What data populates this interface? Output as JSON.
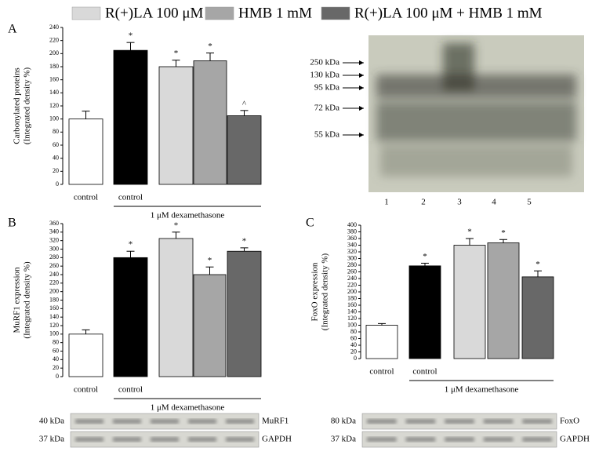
{
  "legend": [
    {
      "name": "R(+)LA 100 μM",
      "color": "#d9d9d9"
    },
    {
      "name": "HMB 1 mM",
      "color": "#a6a6a6"
    },
    {
      "name": "R(+)LA 100 μM + HMB 1 mM",
      "color": "#686868"
    }
  ],
  "chart_data": [
    {
      "type": "bar",
      "panel": "A",
      "ylabel": [
        "Carbonylated proteins",
        "(Integrated density %)"
      ],
      "categories": [
        "control",
        "control",
        null,
        null,
        null
      ],
      "group_label": "1 μM dexamethasone",
      "values": [
        100,
        205,
        180,
        189,
        105
      ],
      "errors": [
        12,
        12,
        10,
        12,
        8
      ],
      "annotations": [
        null,
        "*",
        "*",
        "*",
        "^"
      ],
      "colors": [
        "#ffffff",
        "#000000",
        "#d9d9d9",
        "#a6a6a6",
        "#686868"
      ],
      "ylim": [
        0,
        240
      ],
      "yticks": [
        0,
        20,
        40,
        60,
        80,
        100,
        120,
        140,
        160,
        180,
        200,
        220,
        240
      ],
      "blot": {
        "markers": [
          "250 kDa",
          "130 kDa",
          "95 kDa",
          "72 kDa",
          "55 kDa"
        ],
        "lanes": [
          "1",
          "2",
          "3",
          "4",
          "5"
        ]
      }
    },
    {
      "type": "bar",
      "panel": "B",
      "ylabel": [
        "MuRF1 expression",
        "(Integrated density %)"
      ],
      "categories": [
        "control",
        "control",
        null,
        null,
        null
      ],
      "group_label": "1 μM dexamethasone",
      "values": [
        100,
        280,
        325,
        240,
        295
      ],
      "errors": [
        10,
        15,
        15,
        18,
        8
      ],
      "annotations": [
        null,
        "*",
        "*",
        "*",
        "*"
      ],
      "colors": [
        "#ffffff",
        "#000000",
        "#d9d9d9",
        "#a6a6a6",
        "#686868"
      ],
      "ylim": [
        0,
        360
      ],
      "yticks": [
        0,
        20,
        40,
        60,
        80,
        100,
        120,
        140,
        160,
        180,
        200,
        220,
        240,
        260,
        280,
        300,
        320,
        340,
        360
      ],
      "blot": {
        "rows": [
          {
            "size": "40 kDa",
            "name": "MuRF1"
          },
          {
            "size": "37 kDa",
            "name": "GAPDH"
          }
        ]
      }
    },
    {
      "type": "bar",
      "panel": "C",
      "ylabel": [
        "FoxO expression",
        "(Integrated density %)"
      ],
      "categories": [
        "control",
        "control",
        null,
        null,
        null
      ],
      "group_label": "1 μM dexamethasone",
      "values": [
        100,
        278,
        340,
        347,
        245
      ],
      "errors": [
        5,
        8,
        20,
        10,
        18
      ],
      "annotations": [
        null,
        "*",
        "*",
        "*",
        "*"
      ],
      "colors": [
        "#ffffff",
        "#000000",
        "#d9d9d9",
        "#a6a6a6",
        "#686868"
      ],
      "ylim": [
        0,
        400
      ],
      "yticks": [
        0,
        20,
        40,
        60,
        80,
        100,
        120,
        140,
        160,
        180,
        200,
        220,
        240,
        260,
        280,
        300,
        320,
        340,
        360,
        380,
        400
      ],
      "blot": {
        "rows": [
          {
            "size": "80 kDa",
            "name": "FoxO"
          },
          {
            "size": "37 kDa",
            "name": "GAPDH"
          }
        ]
      }
    }
  ]
}
